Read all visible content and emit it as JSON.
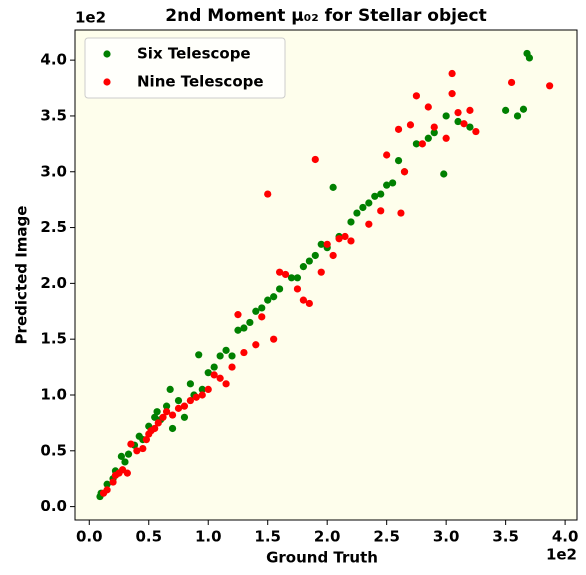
{
  "chart_data": {
    "type": "scatter",
    "title": "2nd Moment μ₀₂ for Stellar object",
    "x_label": "Ground Truth",
    "y_label": "Predicted Image",
    "x_offset_label": "1e2",
    "y_offset_label": "1e2",
    "background": "#fefeec",
    "legend": "upper left",
    "xlim": [
      -0.12,
      4.1
    ],
    "ylim": [
      -0.12,
      4.27
    ],
    "xticks": [
      {
        "value": 0,
        "label": "0.0"
      },
      {
        "value": 0.5,
        "label": "0.5"
      },
      {
        "value": 1,
        "label": "1.0"
      },
      {
        "value": 1.5,
        "label": "1.5"
      },
      {
        "value": 2,
        "label": "2.0"
      },
      {
        "value": 2.5,
        "label": "2.5"
      },
      {
        "value": 3,
        "label": "3.0"
      },
      {
        "value": 3.5,
        "label": "3.5"
      },
      {
        "value": 4,
        "label": "4.0"
      }
    ],
    "yticks": [
      {
        "value": 0,
        "label": "0.0"
      },
      {
        "value": 0.5,
        "label": "0.5"
      },
      {
        "value": 1,
        "label": "1.0"
      },
      {
        "value": 1.5,
        "label": "1.5"
      },
      {
        "value": 2,
        "label": "2.0"
      },
      {
        "value": 2.5,
        "label": "2.5"
      },
      {
        "value": 3,
        "label": "3.0"
      },
      {
        "value": 3.5,
        "label": "3.5"
      },
      {
        "value": 4,
        "label": "4.0"
      }
    ],
    "series": [
      {
        "name": "Six Telescope",
        "color": "#008000",
        "x": [
          0.09,
          0.1,
          0.15,
          0.2,
          0.22,
          0.27,
          0.3,
          0.33,
          0.38,
          0.42,
          0.45,
          0.5,
          0.55,
          0.57,
          0.6,
          0.65,
          0.68,
          0.7,
          0.75,
          0.8,
          0.85,
          0.88,
          0.92,
          0.95,
          1.0,
          1.05,
          1.1,
          1.15,
          1.2,
          1.25,
          1.3,
          1.35,
          1.4,
          1.45,
          1.5,
          1.55,
          1.6,
          1.7,
          1.75,
          1.8,
          1.85,
          1.9,
          1.95,
          2.0,
          2.05,
          2.1,
          2.2,
          2.25,
          2.3,
          2.35,
          2.4,
          2.45,
          2.5,
          2.55,
          2.6,
          2.65,
          2.75,
          2.85,
          2.9,
          2.98,
          3.0,
          3.1,
          3.2,
          3.5,
          3.6,
          3.65,
          3.68,
          3.7
        ],
        "values": [
          0.09,
          0.12,
          0.2,
          0.25,
          0.32,
          0.45,
          0.4,
          0.47,
          0.55,
          0.63,
          0.6,
          0.72,
          0.8,
          0.85,
          0.78,
          0.9,
          1.05,
          0.7,
          0.95,
          0.8,
          1.1,
          1.0,
          1.36,
          1.05,
          1.2,
          1.25,
          1.35,
          1.4,
          1.35,
          1.58,
          1.6,
          1.65,
          1.75,
          1.78,
          1.85,
          1.88,
          1.95,
          2.05,
          2.05,
          2.15,
          2.2,
          2.25,
          2.35,
          2.32,
          2.86,
          2.42,
          2.55,
          2.63,
          2.68,
          2.72,
          2.78,
          2.8,
          2.88,
          2.9,
          3.1,
          3.0,
          3.25,
          3.3,
          3.35,
          2.98,
          3.5,
          3.45,
          3.4,
          3.55,
          3.5,
          3.56,
          4.06,
          4.02
        ]
      },
      {
        "name": "Nine Telescope",
        "color": "#ff0000",
        "x": [
          0.12,
          0.15,
          0.2,
          0.22,
          0.25,
          0.28,
          0.32,
          0.35,
          0.4,
          0.45,
          0.48,
          0.5,
          0.52,
          0.55,
          0.58,
          0.62,
          0.65,
          0.7,
          0.75,
          0.8,
          0.85,
          0.9,
          0.95,
          1.0,
          1.05,
          1.1,
          1.15,
          1.2,
          1.25,
          1.3,
          1.4,
          1.45,
          1.5,
          1.55,
          1.6,
          1.65,
          1.75,
          1.8,
          1.85,
          1.9,
          1.95,
          2.0,
          2.05,
          2.1,
          2.15,
          2.2,
          2.35,
          2.45,
          2.5,
          2.6,
          2.62,
          2.65,
          2.7,
          2.75,
          2.8,
          2.85,
          2.9,
          3.0,
          3.05,
          3.05,
          3.1,
          3.15,
          3.2,
          3.25,
          3.55,
          3.87
        ],
        "values": [
          0.12,
          0.15,
          0.22,
          0.28,
          0.3,
          0.33,
          0.3,
          0.56,
          0.5,
          0.52,
          0.6,
          0.65,
          0.68,
          0.7,
          0.75,
          0.8,
          0.85,
          0.82,
          0.88,
          0.9,
          0.95,
          0.98,
          1.0,
          1.05,
          1.18,
          1.15,
          1.1,
          1.25,
          1.72,
          1.38,
          1.45,
          1.7,
          2.8,
          1.5,
          2.1,
          2.08,
          1.95,
          1.85,
          1.82,
          3.11,
          2.1,
          2.35,
          2.25,
          2.4,
          2.42,
          2.38,
          2.53,
          2.65,
          3.15,
          3.38,
          2.63,
          3.0,
          3.42,
          3.68,
          3.25,
          3.58,
          3.4,
          3.3,
          3.88,
          3.7,
          3.53,
          3.43,
          3.55,
          3.36,
          3.8,
          3.77
        ]
      }
    ]
  }
}
